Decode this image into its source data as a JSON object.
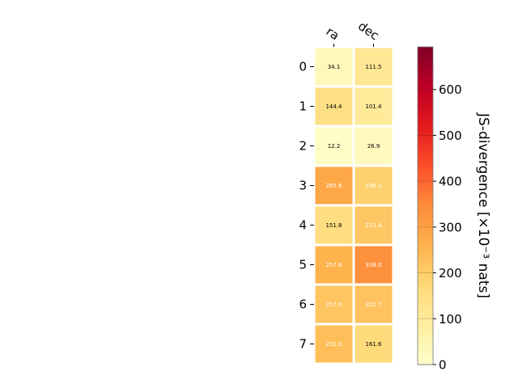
{
  "chart_data": {
    "type": "heatmap",
    "x_categories": [
      "ra",
      "dec"
    ],
    "y_categories": [
      "0",
      "1",
      "2",
      "3",
      "4",
      "5",
      "6",
      "7"
    ],
    "values": [
      [
        34.1,
        111.5
      ],
      [
        144.4,
        101.4
      ],
      [
        12.2,
        26.9
      ],
      [
        285.6,
        190.2
      ],
      [
        151.8,
        212.4
      ],
      [
        257.6,
        338.0
      ],
      [
        217.5,
        222.7
      ],
      [
        231.3,
        161.6
      ]
    ],
    "value_labels": [
      [
        "34.1",
        "111.5"
      ],
      [
        "144.4",
        "101.4"
      ],
      [
        "12.2",
        "26.9"
      ],
      [
        "285.6",
        "190.2"
      ],
      [
        "151.8",
        "212.4"
      ],
      [
        "257.6",
        "338.0"
      ],
      [
        "217.5",
        "222.7"
      ],
      [
        "231.3",
        "161.6"
      ]
    ],
    "colorbar": {
      "label": "JS-divergence [×10⁻³ nats]",
      "range": [
        0,
        693
      ],
      "ticks": [
        0,
        100,
        200,
        300,
        400,
        500,
        600
      ],
      "colormap": "YlOrRd",
      "color_stops": [
        "#ffffcc",
        "#ffeda0",
        "#fed976",
        "#feb24c",
        "#fd8d3c",
        "#fc4e2a",
        "#e31a1c",
        "#bd0026",
        "#800026"
      ]
    },
    "grid": false,
    "cell_border_color": "#ffffff",
    "text_dark_color": "#000000",
    "text_light_color": "#ffffff"
  }
}
